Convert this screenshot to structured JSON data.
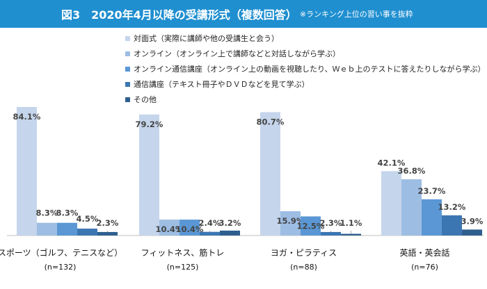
{
  "header": {
    "title": "図3　2020年4月以降の受講形式（複数回答）",
    "note": "※ランキング上位の習い事を抜粋"
  },
  "chart_data": {
    "type": "bar",
    "title": "図3　2020年4月以降の受講形式（複数回答）",
    "ylim": [
      0,
      100
    ],
    "grid": false,
    "legend_position": "top",
    "value_format": "percent",
    "categories": [
      "スポーツ（ゴルフ、テニスなど）",
      "フィットネス、筋トレ",
      "ヨガ・ピラティス",
      "英語・英会話"
    ],
    "category_n": [
      "(n=132)",
      "(n=125)",
      "(n=88)",
      "(n=76)"
    ],
    "series": [
      {
        "name": "対面式（実際に講師や他の受講生と会う）",
        "color": "#c5d5ec",
        "values": [
          84.1,
          79.2,
          80.7,
          42.1
        ]
      },
      {
        "name": "オンライン（オンライン上で講師などと対話しながら学ぶ）",
        "color": "#9dbde3",
        "values": [
          8.3,
          10.4,
          15.9,
          36.8
        ]
      },
      {
        "name": "オンライン通信講座（オンライン上の動画を視聴したり、Ｗｅｂ上のテストに答えたりしながら学ぶ）",
        "color": "#5a97d4",
        "values": [
          8.3,
          10.4,
          12.5,
          23.7
        ]
      },
      {
        "name": "通信講座（テキスト冊子やＤＶＤなどを見て学ぶ）",
        "color": "#3c76b2",
        "values": [
          4.5,
          2.4,
          2.3,
          13.2
        ]
      },
      {
        "name": "その他",
        "color": "#2e5f8f",
        "values": [
          2.3,
          3.2,
          1.1,
          3.9
        ]
      }
    ],
    "value_labels": [
      [
        "84.1%",
        "8.3%",
        "8.3%",
        "4.5%",
        "2.3%"
      ],
      [
        "79.2%",
        "10.4%",
        "10.4%",
        "2.4%",
        "3.2%"
      ],
      [
        "80.7%",
        "15.9%",
        "12.5%",
        "2.3%",
        "1.1%"
      ],
      [
        "42.1%",
        "36.8%",
        "23.7%",
        "13.2%",
        "3.9%"
      ]
    ]
  }
}
